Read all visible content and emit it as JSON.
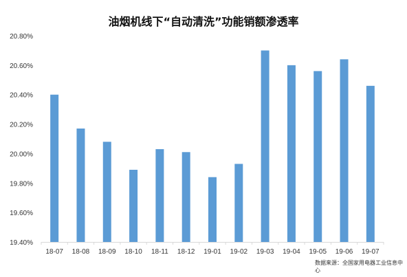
{
  "chart_data": {
    "type": "bar",
    "title": "油烟机线下“自动清洗”功能销额渗透率",
    "categories": [
      "18-07",
      "18-08",
      "18-09",
      "18-10",
      "18-11",
      "18-12",
      "19-01",
      "19-02",
      "19-03",
      "19-04",
      "19-05",
      "19-06",
      "19-07"
    ],
    "values": [
      20.4,
      20.17,
      20.08,
      19.89,
      20.03,
      20.01,
      19.84,
      19.93,
      20.7,
      20.6,
      20.56,
      20.64,
      20.46
    ],
    "yticks": [
      "19.40%",
      "19.60%",
      "19.80%",
      "20.00%",
      "20.20%",
      "20.40%",
      "20.60%",
      "20.80%"
    ],
    "ylim": [
      19.4,
      20.8
    ],
    "xlabel": "",
    "ylabel": "",
    "grid": false,
    "legend": "none",
    "source": "数据来源：全国家用电器工业信息中心"
  },
  "colors": {
    "bar": "#5b9bd5",
    "axis": "#d9d9d9",
    "text": "#333333"
  }
}
